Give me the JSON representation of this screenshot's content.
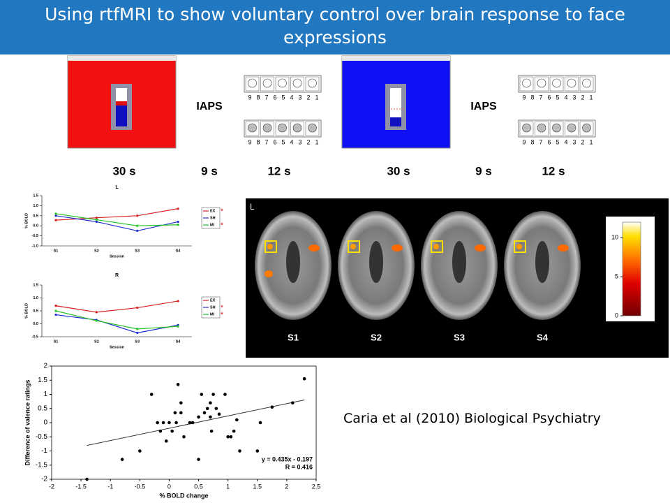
{
  "header": {
    "title": "Using rtfMRI to show voluntary control over brain response to face expressions"
  },
  "paradigm": {
    "stimulus_label": "IAPS",
    "rating_scale": [
      9,
      8,
      7,
      6,
      5,
      4,
      3,
      2,
      1
    ],
    "durations": [
      "30 s",
      "9 s",
      "12 s"
    ]
  },
  "brain_panel": {
    "side_label": "L",
    "sessions": [
      "S1",
      "S2",
      "S3",
      "S4"
    ],
    "colorbar": {
      "range": [
        0,
        12
      ],
      "ticks": [
        0,
        5,
        10
      ]
    }
  },
  "citation": "Caria et al (2010) Biological Psychiatry",
  "chart_data": [
    {
      "type": "line",
      "title": "L",
      "xlabel": "Session",
      "ylabel": "% BOLD",
      "categories": [
        "S1",
        "S2",
        "S3",
        "S4"
      ],
      "ylim": [
        -1,
        1.5
      ],
      "yticks": [
        {
          "value": -1,
          "label": "-1.0"
        },
        {
          "value": -0.5,
          "label": "-0.5"
        },
        {
          "value": 0,
          "label": "0.0"
        },
        {
          "value": 0.5,
          "label": "0.5"
        },
        {
          "value": 1,
          "label": "1.0"
        },
        {
          "value": 1.5,
          "label": "1.5"
        }
      ],
      "series": [
        {
          "name": "EX",
          "color": "#d62020",
          "values": [
            0.28,
            0.4,
            0.5,
            0.85
          ],
          "note": "*"
        },
        {
          "name": "SH",
          "color": "#1f2fd0",
          "values": [
            0.5,
            0.2,
            -0.25,
            0.2
          ]
        },
        {
          "name": "MI",
          "color": "#22c020",
          "values": [
            0.6,
            0.3,
            0.0,
            0.05
          ],
          "note": "*"
        }
      ]
    },
    {
      "type": "line",
      "title": "R",
      "xlabel": "Session",
      "ylabel": "% BOLD",
      "categories": [
        "S1",
        "S2",
        "S3",
        "S4"
      ],
      "ylim": [
        -0.5,
        1.5
      ],
      "yticks": [
        {
          "value": -0.5,
          "label": "-0.5"
        },
        {
          "value": 0,
          "label": "0.0"
        },
        {
          "value": 0.5,
          "label": "0.5"
        },
        {
          "value": 1,
          "label": "1.0"
        },
        {
          "value": 1.5,
          "label": "1.5"
        }
      ],
      "series": [
        {
          "name": "EX",
          "color": "#d62020",
          "values": [
            0.7,
            0.45,
            0.62,
            0.88
          ]
        },
        {
          "name": "SH",
          "color": "#1f2fd0",
          "values": [
            0.35,
            0.15,
            -0.35,
            -0.05
          ],
          "note": "*"
        },
        {
          "name": "MI",
          "color": "#22c020",
          "values": [
            0.5,
            0.12,
            -0.2,
            -0.1
          ],
          "note": "*"
        }
      ]
    },
    {
      "type": "scatter",
      "xlabel": "% BOLD change",
      "ylabel": "Difference of valence ratings",
      "color": "#000000",
      "xlim": [
        -2,
        2.5
      ],
      "xticks": [
        -2,
        -1.5,
        -1,
        -0.5,
        0,
        0.5,
        1,
        1.5,
        2,
        2.5
      ],
      "ylim": [
        -2,
        2
      ],
      "yticks": [
        -2,
        -1.5,
        -1,
        -0.5,
        0,
        0.5,
        1,
        1.5,
        2
      ],
      "x": [
        -1.4,
        -0.8,
        -0.5,
        -0.3,
        -0.2,
        -0.15,
        -0.1,
        -0.05,
        0,
        0.05,
        0.1,
        0.12,
        0.15,
        0.2,
        0.2,
        0.25,
        0.35,
        0.4,
        0.5,
        0.55,
        0.6,
        0.65,
        0.7,
        0.72,
        0.75,
        0.8,
        0.85,
        0.95,
        1,
        1.05,
        1.1,
        1.15,
        1.2,
        1.5,
        1.55,
        1.75,
        2.1,
        2.3,
        0.7,
        0.5
      ],
      "values": [
        -2,
        -1.3,
        -1,
        1,
        0,
        -0.3,
        0,
        -0.65,
        0,
        -0.3,
        0.35,
        0,
        1.35,
        0.35,
        0.7,
        -0.5,
        0,
        0,
        -1.3,
        1,
        0.35,
        0.5,
        0.7,
        -0.3,
        1,
        0.5,
        0.3,
        1,
        -0.5,
        -0.5,
        -0.3,
        0.1,
        -1,
        -1,
        0,
        0.55,
        0.7,
        1.55,
        0.2,
        0.2
      ],
      "fit": {
        "slope": 0.435,
        "intercept": -0.197
      },
      "fit_text": [
        "y = 0.435x - 0.197",
        "R = 0.416"
      ]
    }
  ]
}
